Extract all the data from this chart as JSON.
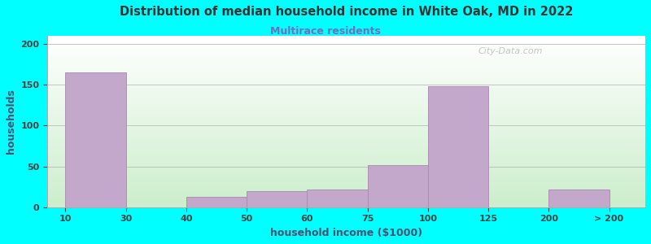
{
  "title": "Distribution of median household income in White Oak, MD in 2022",
  "subtitle": "Multirace residents",
  "xlabel": "household income ($1000)",
  "ylabel": "households",
  "background_color": "#00FFFF",
  "plot_bg_top": "#FFFFFF",
  "plot_bg_bottom": "#CCEECC",
  "bar_color": "#C4A8CC",
  "bar_edge_color": "#A888B0",
  "title_color": "#333333",
  "subtitle_color": "#7070BB",
  "axis_label_color": "#505070",
  "tick_label_color": "#444444",
  "tick_labels": [
    "10",
    "30",
    "40",
    "50",
    "60",
    "75",
    "100",
    "125",
    "200",
    "> 200"
  ],
  "tick_positions": [
    0,
    1,
    2,
    3,
    4,
    5,
    6,
    7,
    8,
    9
  ],
  "bar_lefts": [
    0,
    2,
    3,
    4,
    5,
    6,
    8
  ],
  "bar_rights": [
    1,
    3,
    4,
    5,
    6,
    7,
    9
  ],
  "bar_heights": [
    165,
    13,
    20,
    22,
    52,
    148,
    22
  ],
  "ylim": [
    0,
    210
  ],
  "yticks": [
    0,
    50,
    100,
    150,
    200
  ],
  "watermark": "City-Data.com",
  "figsize": [
    8.0,
    3.0
  ],
  "dpi": 100
}
